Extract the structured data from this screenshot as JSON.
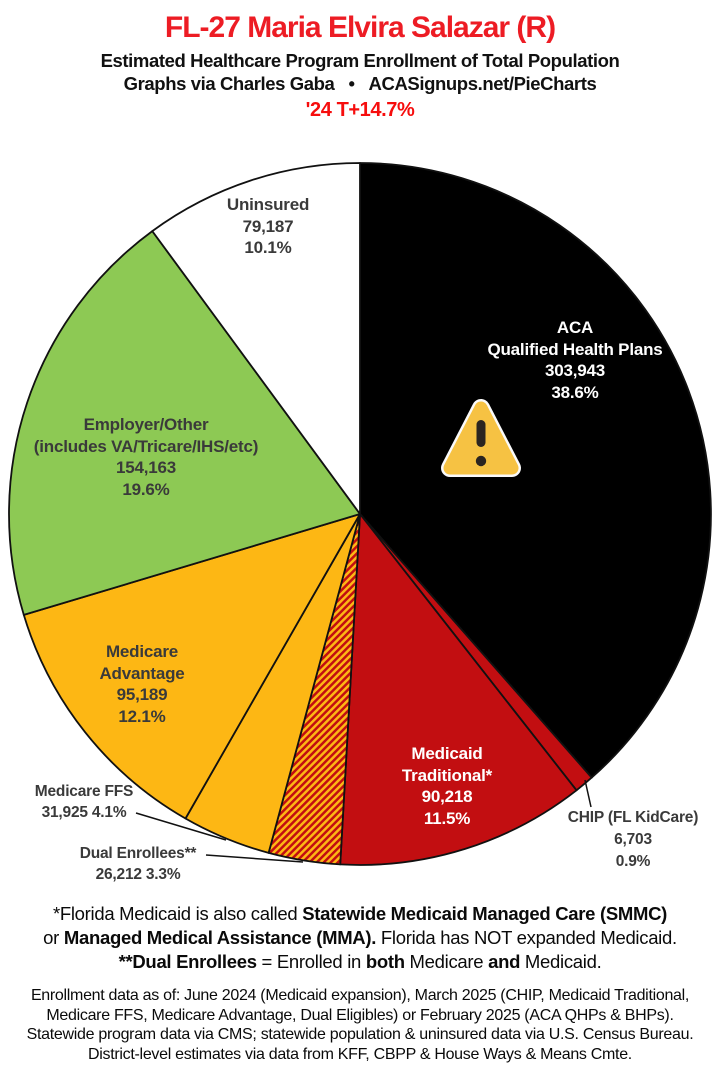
{
  "header": {
    "title": "FL-27 Maria Elvira Salazar (R)",
    "title_color": "#ED1C24",
    "subtitle": "Estimated Healthcare Program Enrollment of Total Population",
    "credit_left": "Graphs via Charles Gaba",
    "credit_bullet": "•",
    "credit_right": "ACASignups.net/PieCharts",
    "growth": "'24 T+14.7%",
    "growth_color": "#F60D0D"
  },
  "chart_data": {
    "type": "pie",
    "title": "Estimated Healthcare Program Enrollment of Total Population",
    "direction": "clockwise",
    "start_angle_deg": 0,
    "stroke_color": "#111111",
    "segments": [
      {
        "name": "ACA Qualified Health Plans",
        "value": 303943,
        "pct": 38.6,
        "color": "#000000",
        "pattern": "solid",
        "text_color": "#FFFFFF",
        "label_placement": "inside",
        "label_lines": [
          "ACA",
          "Qualified Health Plans",
          "303,943",
          "38.6%"
        ]
      },
      {
        "name": "CHIP (FL KidCare)",
        "value": 6703,
        "pct": 0.9,
        "color": "#C20E11",
        "pattern": "solid",
        "text_color": "#3A3A3A",
        "label_placement": "outside",
        "label_lines": [
          "CHIP (FL KidCare)",
          "6,703",
          "0.9%"
        ]
      },
      {
        "name": "Medicaid Traditional*",
        "value": 90218,
        "pct": 11.5,
        "color": "#C20E11",
        "pattern": "solid",
        "text_color": "#FFFFFF",
        "label_placement": "inside",
        "label_lines": [
          "Medicaid",
          "Traditional*",
          "90,218",
          "11.5%"
        ]
      },
      {
        "name": "Dual Enrollees**",
        "value": 26212,
        "pct": 3.3,
        "color": "#C20E11",
        "pattern": "diagonal-hatch",
        "hatch_color": "#FDB714",
        "text_color": "#3A3A3A",
        "label_placement": "outside",
        "label_lines": [
          "Dual Enrollees**",
          "26,212 3.3%"
        ]
      },
      {
        "name": "Medicare FFS",
        "value": 31925,
        "pct": 4.1,
        "color": "#FDB714",
        "pattern": "solid",
        "text_color": "#3A3A3A",
        "label_placement": "outside",
        "label_lines": [
          "Medicare FFS",
          "31,925 4.1%"
        ]
      },
      {
        "name": "Medicare Advantage",
        "value": 95189,
        "pct": 12.1,
        "color": "#FDB714",
        "pattern": "solid",
        "text_color": "#3A3A3A",
        "label_placement": "inside",
        "label_lines": [
          "Medicare",
          "Advantage",
          "95,189",
          "12.1%"
        ]
      },
      {
        "name": "Employer/Other (includes VA/Tricare/IHS/etc)",
        "value": 154163,
        "pct": 19.6,
        "color": "#8DC954",
        "pattern": "solid",
        "text_color": "#3A3A3A",
        "label_placement": "inside",
        "label_lines": [
          "Employer/Other",
          "(includes VA/Tricare/IHS/etc)",
          "154,163",
          "19.6%"
        ]
      },
      {
        "name": "Uninsured",
        "value": 79187,
        "pct": 10.1,
        "color": "#FFFFFF",
        "pattern": "solid",
        "text_color": "#3A3A3A",
        "label_placement": "inside",
        "label_lines": [
          "Uninsured",
          "79,187",
          "10.1%"
        ]
      }
    ],
    "warning_icon": {
      "triangle_fill": "#F6C243",
      "triangle_border": "#FAFAFA",
      "mark_color": "#2B2520"
    }
  },
  "footnote": {
    "lines": [
      [
        {
          "text": "*Florida Medicaid is also called ",
          "bold": false
        },
        {
          "text": "Statewide Medicaid Managed Care (SMMC)",
          "bold": true
        }
      ],
      [
        {
          "text": "or ",
          "bold": false
        },
        {
          "text": "Managed Medical Assistance (MMA).",
          "bold": true
        },
        {
          "text": " Florida has NOT expanded Medicaid.",
          "bold": false
        }
      ],
      [
        {
          "text": "**Dual Enrollees",
          "bold": true
        },
        {
          "text": " = Enrolled in ",
          "bold": false
        },
        {
          "text": "both",
          "bold": true
        },
        {
          "text": " Medicare ",
          "bold": false
        },
        {
          "text": "and",
          "bold": true
        },
        {
          "text": " Medicaid.",
          "bold": false
        }
      ]
    ]
  },
  "source_note": {
    "lines": [
      "Enrollment data as of: June 2024 (Medicaid expansion), March 2025 (CHIP, Medicaid Traditional,",
      "Medicare FFS, Medicare Advantage, Dual Eligibles) or February 2025 (ACA QHPs & BHPs).",
      "Statewide program data via CMS; statewide population & uninsured data via U.S. Census Bureau.",
      "District-level estimates via data from KFF, CBPP & House Ways & Means Cmte."
    ]
  }
}
